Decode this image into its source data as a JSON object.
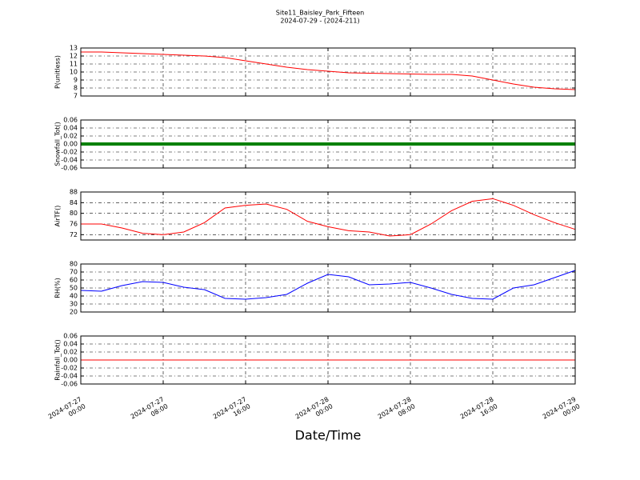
{
  "chart_data": [
    {
      "type": "line",
      "title": "Site11_Baisley_Park_Fifteen",
      "subtitle": "2024-07-29 - (2024-211)",
      "ylabel": "P(unitless)",
      "xlim": [
        "2024-07-27 00:00",
        "2024-07-29 00:00"
      ],
      "ylim": [
        7,
        13
      ],
      "yticks": [
        7,
        8,
        9,
        10,
        11,
        12,
        13
      ],
      "grid": true,
      "color": "#ff0000",
      "x": [
        "2024-07-27 00:00",
        "2024-07-27 02:00",
        "2024-07-27 04:00",
        "2024-07-27 06:00",
        "2024-07-27 08:00",
        "2024-07-27 10:00",
        "2024-07-27 12:00",
        "2024-07-27 14:00",
        "2024-07-27 16:00",
        "2024-07-27 18:00",
        "2024-07-27 20:00",
        "2024-07-27 22:00",
        "2024-07-28 00:00",
        "2024-07-28 02:00",
        "2024-07-28 04:00",
        "2024-07-28 06:00",
        "2024-07-28 08:00",
        "2024-07-28 10:00",
        "2024-07-28 12:00",
        "2024-07-28 14:00",
        "2024-07-28 16:00",
        "2024-07-28 18:00",
        "2024-07-28 20:00",
        "2024-07-28 22:00",
        "2024-07-29 00:00"
      ],
      "values": [
        12.5,
        12.5,
        12.4,
        12.3,
        12.2,
        12.1,
        12.0,
        11.8,
        11.4,
        11.0,
        10.6,
        10.3,
        10.1,
        9.9,
        9.85,
        9.8,
        9.75,
        9.7,
        9.7,
        9.5,
        9.0,
        8.5,
        8.1,
        7.9,
        7.8
      ]
    },
    {
      "type": "line",
      "ylabel": "Snowfall_Tot()",
      "xlim": [
        "2024-07-27 00:00",
        "2024-07-29 00:00"
      ],
      "ylim": [
        -0.06,
        0.06
      ],
      "yticks": [
        -0.06,
        -0.04,
        -0.02,
        {
          "value": 0,
          "label": "0.00"
        },
        0.02,
        0.04,
        0.06
      ],
      "grid": true,
      "color": "#008000",
      "line_width": 4,
      "x": [
        "2024-07-27 00:00",
        "2024-07-27 02:00",
        "2024-07-27 04:00",
        "2024-07-27 06:00",
        "2024-07-27 08:00",
        "2024-07-27 10:00",
        "2024-07-27 12:00",
        "2024-07-27 14:00",
        "2024-07-27 16:00",
        "2024-07-27 18:00",
        "2024-07-27 20:00",
        "2024-07-27 22:00",
        "2024-07-28 00:00",
        "2024-07-28 02:00",
        "2024-07-28 04:00",
        "2024-07-28 06:00",
        "2024-07-28 08:00",
        "2024-07-28 10:00",
        "2024-07-28 12:00",
        "2024-07-28 14:00",
        "2024-07-28 16:00",
        "2024-07-28 18:00",
        "2024-07-28 20:00",
        "2024-07-28 22:00",
        "2024-07-29 00:00"
      ],
      "values": [
        0,
        0,
        0,
        0,
        0,
        0,
        0,
        0,
        0,
        0,
        0,
        0,
        0,
        0,
        0,
        0,
        0,
        0,
        0,
        0,
        0,
        0,
        0,
        0,
        0
      ]
    },
    {
      "type": "line",
      "ylabel": "AirTF()",
      "xlim": [
        "2024-07-27 00:00",
        "2024-07-29 00:00"
      ],
      "ylim": [
        70,
        88
      ],
      "yticks": [
        72,
        76,
        80,
        84,
        88
      ],
      "grid": true,
      "color": "#ff0000",
      "x": [
        "2024-07-27 00:00",
        "2024-07-27 02:00",
        "2024-07-27 04:00",
        "2024-07-27 06:00",
        "2024-07-27 08:00",
        "2024-07-27 10:00",
        "2024-07-27 12:00",
        "2024-07-27 14:00",
        "2024-07-27 16:00",
        "2024-07-27 18:00",
        "2024-07-27 20:00",
        "2024-07-27 22:00",
        "2024-07-28 00:00",
        "2024-07-28 02:00",
        "2024-07-28 04:00",
        "2024-07-28 06:00",
        "2024-07-28 08:00",
        "2024-07-28 10:00",
        "2024-07-28 12:00",
        "2024-07-28 14:00",
        "2024-07-28 16:00",
        "2024-07-28 18:00",
        "2024-07-28 20:00",
        "2024-07-28 22:00",
        "2024-07-29 00:00"
      ],
      "values": [
        76,
        76,
        74.5,
        72.5,
        72,
        73,
        76.5,
        82,
        83,
        83.5,
        81.5,
        77,
        75,
        73.5,
        73,
        71.5,
        72,
        76,
        81,
        84.5,
        85.5,
        83,
        79.5,
        76.5,
        74
      ]
    },
    {
      "type": "line",
      "ylabel": "RH(%)",
      "xlim": [
        "2024-07-27 00:00",
        "2024-07-29 00:00"
      ],
      "ylim": [
        20,
        80
      ],
      "yticks": [
        20,
        30,
        40,
        50,
        60,
        70,
        80
      ],
      "grid": true,
      "color": "#0000ff",
      "x": [
        "2024-07-27 00:00",
        "2024-07-27 02:00",
        "2024-07-27 04:00",
        "2024-07-27 06:00",
        "2024-07-27 08:00",
        "2024-07-27 10:00",
        "2024-07-27 12:00",
        "2024-07-27 14:00",
        "2024-07-27 16:00",
        "2024-07-27 18:00",
        "2024-07-27 20:00",
        "2024-07-27 22:00",
        "2024-07-28 00:00",
        "2024-07-28 02:00",
        "2024-07-28 04:00",
        "2024-07-28 06:00",
        "2024-07-28 08:00",
        "2024-07-28 10:00",
        "2024-07-28 12:00",
        "2024-07-28 14:00",
        "2024-07-28 16:00",
        "2024-07-28 18:00",
        "2024-07-28 20:00",
        "2024-07-28 22:00",
        "2024-07-29 00:00"
      ],
      "values": [
        47,
        46,
        53,
        58,
        57,
        51,
        48,
        37,
        36,
        38,
        42,
        56,
        67,
        64,
        54,
        55,
        57,
        50,
        42,
        37,
        36,
        50,
        54,
        63,
        72
      ]
    },
    {
      "type": "line",
      "ylabel": "Rainfall_Tot()",
      "xlabel": "Date/Time",
      "xlim": [
        "2024-07-27 00:00",
        "2024-07-29 00:00"
      ],
      "ylim": [
        -0.06,
        0.06
      ],
      "yticks": [
        -0.06,
        -0.04,
        -0.02,
        {
          "value": 0,
          "label": "0.00"
        },
        0.02,
        0.04,
        0.06
      ],
      "xticks": [
        "2024-07-27 00:00",
        "2024-07-27 08:00",
        "2024-07-27 16:00",
        "2024-07-28 00:00",
        "2024-07-28 08:00",
        "2024-07-28 16:00",
        "2024-07-29 00:00"
      ],
      "grid": true,
      "color": "#ff0000",
      "x": [
        "2024-07-27 00:00",
        "2024-07-27 02:00",
        "2024-07-27 04:00",
        "2024-07-27 06:00",
        "2024-07-27 08:00",
        "2024-07-27 10:00",
        "2024-07-27 12:00",
        "2024-07-27 14:00",
        "2024-07-27 16:00",
        "2024-07-27 18:00",
        "2024-07-27 20:00",
        "2024-07-27 22:00",
        "2024-07-28 00:00",
        "2024-07-28 02:00",
        "2024-07-28 04:00",
        "2024-07-28 06:00",
        "2024-07-28 08:00",
        "2024-07-28 10:00",
        "2024-07-28 12:00",
        "2024-07-28 14:00",
        "2024-07-28 16:00",
        "2024-07-28 18:00",
        "2024-07-28 20:00",
        "2024-07-28 22:00",
        "2024-07-29 00:00"
      ],
      "values": [
        0,
        0,
        0,
        0,
        0,
        0,
        0,
        0,
        0,
        0,
        0,
        0,
        0,
        0,
        0,
        0,
        0,
        0,
        0,
        0,
        0,
        0,
        0,
        0,
        0
      ]
    }
  ]
}
